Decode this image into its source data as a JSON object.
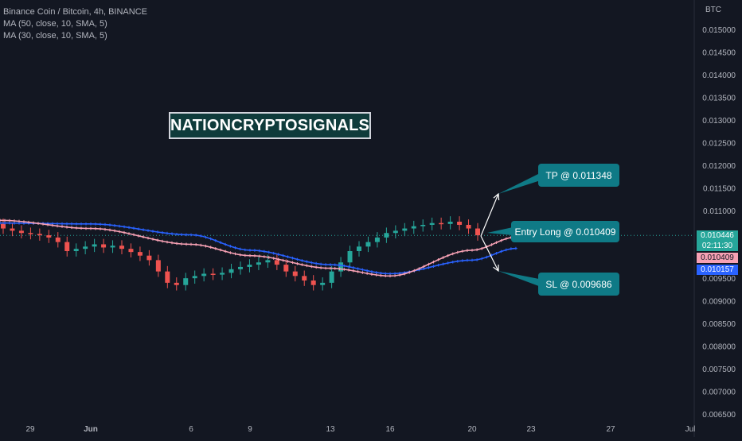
{
  "legend": {
    "symbol_line": "Binance Coin / Bitcoin, 4h, BINANCE",
    "ma1": "MA (50, close, 10, SMA, 5)",
    "ma2": "MA (30, close, 10, SMA, 5)"
  },
  "watermark": "NATIONCRYPTOSIGNALS",
  "annotations": {
    "tp": "TP @ 0.011348",
    "entry": "Entry Long @ 0.010409",
    "sl": "SL @ 0.009686"
  },
  "price_scale": {
    "currency": "BTC",
    "current_price": "0.010446",
    "countdown": "02:11:30",
    "ma_pink_value": "0.010409",
    "ma_blue_value": "0.010157"
  },
  "colors": {
    "background": "#131722",
    "up": "#26a69a",
    "down": "#ef5350",
    "ma_pink": "#f7a1b4",
    "ma_blue": "#2962ff",
    "callout": "#0f7a86",
    "current_price_tag": "#26a69a"
  },
  "chart_data": {
    "type": "candlestick",
    "title": "Binance Coin / Bitcoin, 4h, BINANCE",
    "x_tick_labels": [
      "29",
      "Jun",
      "6",
      "9",
      "13",
      "16",
      "20",
      "23",
      "27",
      "Jul"
    ],
    "y_tick_labels": [
      "0.015000",
      "0.014500",
      "0.014000",
      "0.013500",
      "0.013000",
      "0.012500",
      "0.012000",
      "0.011500",
      "0.011000",
      "0.010500",
      "0.010000",
      "0.009500",
      "0.009000",
      "0.008500",
      "0.008000",
      "0.007500",
      "0.007000",
      "0.006500"
    ],
    "ylim": [
      0.0063,
      0.0155
    ],
    "grid": false,
    "series": [
      {
        "name": "MA (50, close, 10, SMA, 5)",
        "x": [
          "29",
          "Jun",
          "6",
          "9",
          "13",
          "16",
          "20",
          "22"
        ],
        "values": [
          0.01072,
          0.0107,
          0.01046,
          0.01012,
          0.0098,
          0.0096,
          0.0099,
          0.01016
        ]
      },
      {
        "name": "MA (30, close, 10, SMA, 5)",
        "x": [
          "29",
          "Jun",
          "6",
          "9",
          "13",
          "16",
          "20",
          "22"
        ],
        "values": [
          0.01078,
          0.0106,
          0.01025,
          0.01,
          0.00972,
          0.00955,
          0.01012,
          0.01041
        ]
      }
    ],
    "candles_close": [
      0.0106,
      0.01055,
      0.0105,
      0.01048,
      0.01045,
      0.0104,
      0.0103,
      0.0101,
      0.01015,
      0.0102,
      0.01025,
      0.01018,
      0.01022,
      0.01015,
      0.01008,
      0.01,
      0.0099,
      0.00965,
      0.0094,
      0.00935,
      0.0095,
      0.00955,
      0.0096,
      0.00958,
      0.00962,
      0.0097,
      0.00975,
      0.0098,
      0.00985,
      0.0099,
      0.0098,
      0.00965,
      0.00955,
      0.00945,
      0.00935,
      0.0094,
      0.00965,
      0.00985,
      0.0101,
      0.0102,
      0.0103,
      0.0104,
      0.0105,
      0.01055,
      0.0106,
      0.01065,
      0.01068,
      0.01072,
      0.0107,
      0.01075,
      0.01068,
      0.0106,
      0.01045
    ]
  }
}
